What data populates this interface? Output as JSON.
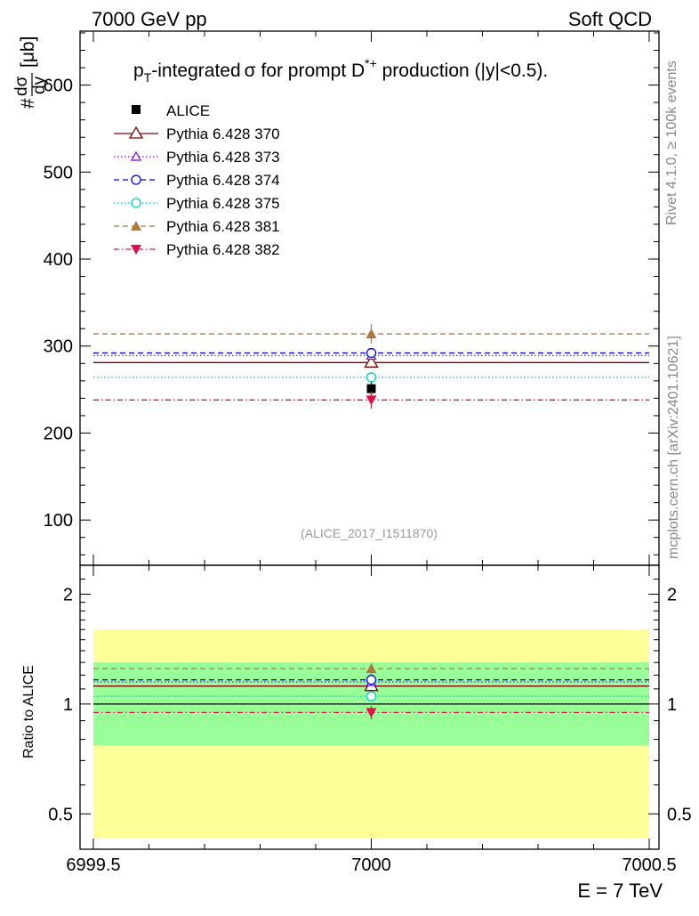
{
  "header": {
    "left": "7000 GeV pp",
    "right": "Soft QCD"
  },
  "side_labels": {
    "rivet": "Rivet 4.1.0, ≥ 100k events",
    "mcplots": "mcplots.cern.ch [arXiv:2401.10621]"
  },
  "watermark": "(ALICE_2017_I1511870)",
  "chart_data": [
    {
      "type": "scatter",
      "panel": "main",
      "title": "pT-integrated σ for prompt D*+ production (|y|<0.5).",
      "title_parts": {
        "p": "p",
        "T": "T",
        "mid": "-integrated",
        "sigma": "σ",
        "rest1": " for prompt D",
        "sup": "*+",
        "rest2": " production (|y|<0.5)."
      },
      "ylabel": "#dσ/dy [μb]",
      "ylabel_parts": {
        "hash": "#",
        "num": "dσ",
        "den": "dy",
        "unit": "[μb]"
      },
      "xlabel": "E = 7 TeV",
      "xlim": [
        6999.5,
        7000.5
      ],
      "ylim": [
        48,
        662
      ],
      "yticks": [
        100,
        200,
        300,
        400,
        500,
        600
      ],
      "ytick_labels": [
        "100",
        "200",
        "300",
        "400",
        "500",
        "600"
      ],
      "xticks": [
        6999.5,
        7000,
        7000.5
      ],
      "xtick_labels": [
        "6999.5",
        "7000",
        "7000.5"
      ],
      "legend_position": "top-left",
      "series": [
        {
          "name": "ALICE",
          "x": 7000,
          "y": 251,
          "err": 8,
          "color": "#000000",
          "marker": "square-filled",
          "line": "none"
        },
        {
          "name": "Pythia 6.428 370",
          "x": 7000,
          "y": 281,
          "err": 3,
          "color": "#7f0000",
          "marker": "triangle-open",
          "line": "solid"
        },
        {
          "name": "Pythia 6.428 373",
          "x": 7000,
          "y": 289,
          "err": 3,
          "color": "#7f00ff",
          "marker": "triangle-open-small",
          "line": "dotted"
        },
        {
          "name": "Pythia 6.428 374",
          "x": 7000,
          "y": 292,
          "err": 3,
          "color": "#0000ff",
          "marker": "circle-open",
          "line": "dashed"
        },
        {
          "name": "Pythia 6.428 375",
          "x": 7000,
          "y": 264,
          "err": 3,
          "color": "#00cccc",
          "marker": "circle-open",
          "line": "dotted"
        },
        {
          "name": "Pythia 6.428 381",
          "x": 7000,
          "y": 314,
          "err": 11,
          "color": "#b07840",
          "marker": "triangle-filled",
          "line": "dashed"
        },
        {
          "name": "Pythia 6.428 382",
          "x": 7000,
          "y": 238,
          "err": 10,
          "color": "#e0104a",
          "marker": "triangle-down-filled",
          "line": "dashdot"
        }
      ]
    },
    {
      "type": "scatter",
      "panel": "ratio",
      "ylabel": "Ratio to ALICE",
      "scale": "log",
      "ylim": [
        0.4,
        2.4
      ],
      "yticks": [
        0.5,
        1,
        2
      ],
      "ytick_labels": [
        "0.5",
        "1",
        "2"
      ],
      "bands": [
        {
          "name": "outer",
          "low": 0.43,
          "high": 1.6,
          "color": "#ffff99"
        },
        {
          "name": "inner",
          "low": 0.77,
          "high": 1.3,
          "color": "#99ff99"
        }
      ],
      "ratios": [
        {
          "name": "ALICE",
          "value": 1.0,
          "err": 0,
          "color": "#000000",
          "marker": "none",
          "line": "solid"
        },
        {
          "name": "Pythia 6.428 370",
          "value": 1.12,
          "err": 0.02,
          "color": "#7f0000",
          "marker": "triangle-open",
          "line": "solid"
        },
        {
          "name": "Pythia 6.428 373",
          "value": 1.15,
          "err": 0.02,
          "color": "#7f00ff",
          "marker": "triangle-open-small",
          "line": "dotted"
        },
        {
          "name": "Pythia 6.428 374",
          "value": 1.165,
          "err": 0.02,
          "color": "#0000ff",
          "marker": "circle-open",
          "line": "dashed"
        },
        {
          "name": "Pythia 6.428 375",
          "value": 1.05,
          "err": 0.02,
          "color": "#00cccc",
          "marker": "circle-open",
          "line": "dotted"
        },
        {
          "name": "Pythia 6.428 381",
          "value": 1.25,
          "err": 0.045,
          "color": "#b07840",
          "marker": "triangle-filled",
          "line": "dashed"
        },
        {
          "name": "Pythia 6.428 382",
          "value": 0.948,
          "err": 0.04,
          "color": "#e0104a",
          "marker": "triangle-down-filled",
          "line": "dashdot"
        }
      ]
    }
  ]
}
